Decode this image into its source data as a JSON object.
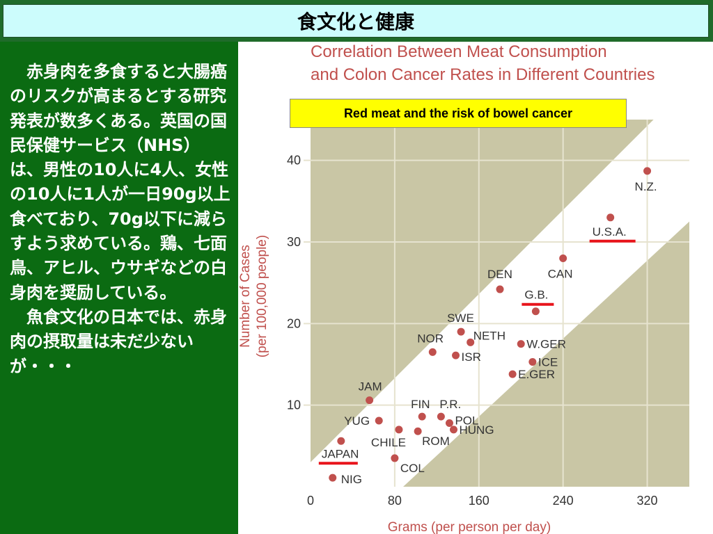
{
  "slide": {
    "title": "食文化と健康",
    "body_text": "　赤身肉を多食すると大腸癌のリスクが高まるとする研究発表が数多くある。英国の国民保健サービス（NHS）は、男性の10人に4人、女性の10人に1人が一日90g以上食べており、70g以下に減らすよう求めている。鶏、七面鳥、アヒル、ウサギなどの白身肉を奨励している。\n　魚食文化の日本では、赤身肉の摂取量は未だ少ないが・・・",
    "overlay_label": "Red meat and the risk of bowel cancer"
  },
  "colors": {
    "title_bg": "#ccfcfc",
    "panel_green": "#0b6b12",
    "chart_text_red": "#c0504d",
    "band_fill": "#c9c6a5",
    "point_color": "#c0504d",
    "underline_red": "#e8141b",
    "overlay_bg": "#ffff00"
  },
  "chart_data": {
    "type": "scatter",
    "title_lines": [
      "Correlation Between Meat Consumption",
      "and Colon Cancer Rates in Different Countries"
    ],
    "xlabel": "Grams (per person per day)",
    "ylabel_lines": [
      "Number of Cases",
      "(per 100,000 people)"
    ],
    "xlim": [
      0,
      360
    ],
    "ylim": [
      0,
      45
    ],
    "xticks": [
      0,
      80,
      160,
      240,
      320
    ],
    "yticks": [
      10,
      20,
      30,
      40
    ],
    "grid": true,
    "points": [
      {
        "label": "N.Z.",
        "x": 320,
        "y": 38.7,
        "underline": false
      },
      {
        "label": "U.S.A.",
        "x": 285,
        "y": 33.0,
        "underline": true
      },
      {
        "label": "CAN",
        "x": 240,
        "y": 28.0,
        "underline": false
      },
      {
        "label": "DEN",
        "x": 180,
        "y": 24.2,
        "underline": false
      },
      {
        "label": "G.B.",
        "x": 214,
        "y": 21.5,
        "underline": true
      },
      {
        "label": "SWE",
        "x": 143,
        "y": 19.0,
        "underline": false
      },
      {
        "label": "NETH",
        "x": 152,
        "y": 17.7,
        "underline": false
      },
      {
        "label": "NOR",
        "x": 116,
        "y": 16.5,
        "underline": false
      },
      {
        "label": "ISR",
        "x": 138,
        "y": 16.1,
        "underline": false
      },
      {
        "label": "W.GER",
        "x": 200,
        "y": 17.5,
        "underline": false
      },
      {
        "label": "ICE",
        "x": 211,
        "y": 15.3,
        "underline": false
      },
      {
        "label": "E.GER",
        "x": 192,
        "y": 13.8,
        "underline": false
      },
      {
        "label": "JAM",
        "x": 56,
        "y": 10.6,
        "underline": false
      },
      {
        "label": "FIN",
        "x": 106,
        "y": 8.6,
        "underline": false
      },
      {
        "label": "P.R.",
        "x": 124,
        "y": 8.6,
        "underline": false
      },
      {
        "label": "POL",
        "x": 132,
        "y": 7.8,
        "underline": false
      },
      {
        "label": "YUG",
        "x": 65,
        "y": 8.1,
        "underline": false
      },
      {
        "label": "CHILE",
        "x": 84,
        "y": 7.0,
        "underline": false
      },
      {
        "label": "ROM",
        "x": 102,
        "y": 6.8,
        "underline": false
      },
      {
        "label": "HUNG",
        "x": 136,
        "y": 7.0,
        "underline": false
      },
      {
        "label": "JAPAN",
        "x": 29,
        "y": 5.6,
        "underline": true
      },
      {
        "label": "COL",
        "x": 80,
        "y": 3.5,
        "underline": false
      },
      {
        "label": "NIG",
        "x": 21,
        "y": 1.1,
        "underline": false
      }
    ]
  }
}
